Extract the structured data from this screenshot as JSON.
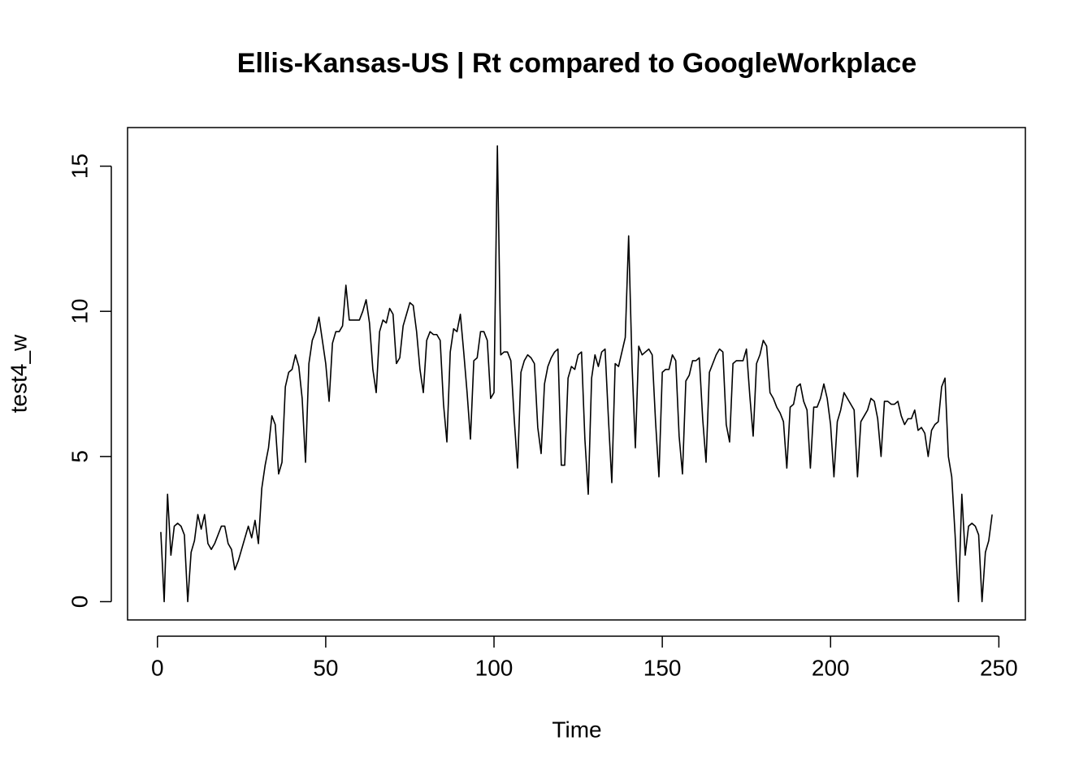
{
  "chart_data": {
    "type": "line",
    "title": "Ellis-Kansas-US | Rt compared to GoogleWorkplace",
    "x_label": "Time",
    "y_label": "test4_w",
    "x": [
      1,
      2,
      3,
      4,
      5,
      6,
      7,
      8,
      9,
      10,
      11,
      12,
      13,
      14,
      15,
      16,
      17,
      18,
      19,
      20,
      21,
      22,
      23,
      24,
      25,
      26,
      27,
      28,
      29,
      30,
      31,
      32,
      33,
      34,
      35,
      36,
      37,
      38,
      39,
      40,
      41,
      42,
      43,
      44,
      45,
      46,
      47,
      48,
      49,
      50,
      51,
      52,
      53,
      54,
      55,
      56,
      57,
      58,
      59,
      60,
      61,
      62,
      63,
      64,
      65,
      66,
      67,
      68,
      69,
      70,
      71,
      72,
      73,
      74,
      75,
      76,
      77,
      78,
      79,
      80,
      81,
      82,
      83,
      84,
      85,
      86,
      87,
      88,
      89,
      90,
      91,
      92,
      93,
      94,
      95,
      96,
      97,
      98,
      99,
      100,
      101,
      102,
      103,
      104,
      105,
      106,
      107,
      108,
      109,
      110,
      111,
      112,
      113,
      114,
      115,
      116,
      117,
      118,
      119,
      120,
      121,
      122,
      123,
      124,
      125,
      126,
      127,
      128,
      129,
      130,
      131,
      132,
      133,
      134,
      135,
      136,
      137,
      138,
      139,
      140,
      141,
      142,
      143,
      144,
      145,
      146,
      147,
      148,
      149,
      150,
      151,
      152,
      153,
      154,
      155,
      156,
      157,
      158,
      159,
      160,
      161,
      162,
      163,
      164,
      165,
      166,
      167,
      168,
      169,
      170,
      171,
      172,
      173,
      174,
      175,
      176,
      177,
      178,
      179,
      180,
      181,
      182,
      183,
      184,
      185,
      186,
      187,
      188,
      189,
      190,
      191,
      192,
      193,
      194,
      195,
      196,
      197,
      198,
      199,
      200,
      201,
      202,
      203,
      204,
      205,
      206,
      207,
      208,
      209,
      210,
      211,
      212,
      213,
      214,
      215,
      216,
      217,
      218,
      219,
      220,
      221,
      222,
      223,
      224,
      225,
      226,
      227,
      228,
      229,
      230,
      231,
      232,
      233,
      234,
      235,
      236,
      237,
      238,
      239,
      240,
      241,
      242,
      243,
      244,
      245,
      246,
      247,
      248
    ],
    "series": [
      {
        "name": "test4_w",
        "color": "#000000",
        "values": [
          2.4,
          0,
          3.7,
          1.6,
          2.6,
          2.7,
          2.6,
          2.3,
          0,
          1.7,
          2.1,
          3.0,
          2.5,
          3.0,
          2.0,
          1.8,
          2.0,
          2.3,
          2.6,
          2.6,
          2.0,
          1.8,
          1.1,
          1.4,
          1.8,
          2.2,
          2.6,
          2.2,
          2.8,
          2.0,
          3.9,
          4.7,
          5.3,
          6.4,
          6.1,
          4.4,
          4.8,
          7.4,
          7.9,
          8.0,
          8.5,
          8.1,
          7.0,
          4.8,
          8.2,
          9.0,
          9.3,
          9.8,
          9.0,
          8.2,
          6.9,
          8.9,
          9.3,
          9.3,
          9.5,
          10.9,
          9.7,
          9.7,
          9.7,
          9.7,
          10.0,
          10.4,
          9.6,
          8.0,
          7.2,
          9.3,
          9.7,
          9.6,
          10.1,
          9.9,
          8.2,
          8.4,
          9.5,
          9.9,
          10.3,
          10.2,
          9.3,
          8.0,
          7.2,
          9.0,
          9.3,
          9.2,
          9.2,
          9.0,
          6.8,
          5.5,
          8.6,
          9.4,
          9.3,
          9.9,
          8.6,
          7.2,
          5.6,
          8.3,
          8.4,
          9.3,
          9.3,
          9.0,
          7.0,
          7.2,
          15.7,
          8.5,
          8.6,
          8.6,
          8.3,
          6.3,
          4.6,
          7.9,
          8.3,
          8.5,
          8.4,
          8.2,
          6.0,
          5.1,
          7.5,
          8.1,
          8.4,
          8.6,
          8.7,
          4.7,
          4.7,
          7.7,
          8.1,
          8.0,
          8.5,
          8.6,
          5.6,
          3.7,
          7.7,
          8.5,
          8.1,
          8.6,
          8.7,
          6.3,
          4.1,
          8.2,
          8.1,
          8.6,
          9.1,
          12.6,
          8.2,
          5.3,
          8.8,
          8.5,
          8.6,
          8.7,
          8.5,
          6.2,
          4.3,
          7.9,
          8.0,
          8.0,
          8.5,
          8.3,
          5.7,
          4.4,
          7.6,
          7.8,
          8.3,
          8.3,
          8.4,
          6.3,
          4.8,
          7.9,
          8.2,
          8.5,
          8.7,
          8.6,
          6.1,
          5.5,
          8.2,
          8.3,
          8.3,
          8.3,
          8.7,
          7.1,
          5.7,
          8.2,
          8.5,
          9.0,
          8.8,
          7.2,
          7.0,
          6.7,
          6.5,
          6.2,
          4.6,
          6.7,
          6.8,
          7.4,
          7.5,
          6.9,
          6.6,
          4.6,
          6.7,
          6.7,
          7.0,
          7.5,
          7.0,
          6.1,
          4.3,
          6.2,
          6.6,
          7.2,
          7.0,
          6.8,
          6.6,
          4.3,
          6.2,
          6.4,
          6.6,
          7.0,
          6.9,
          6.3,
          5.0,
          6.9,
          6.9,
          6.8,
          6.8,
          6.9,
          6.4,
          6.1,
          6.3,
          6.3,
          6.6,
          5.9,
          6.0,
          5.8,
          5.0,
          5.9,
          6.1,
          6.2,
          7.4,
          7.7,
          5.0,
          4.3,
          2.3,
          0,
          3.7,
          1.6,
          2.6,
          2.7,
          2.6,
          2.3,
          0,
          1.7,
          2.1,
          3.0
        ]
      }
    ],
    "xlim": [
      -8.88,
      257.88
    ],
    "ylim": [
      -0.63,
      16.33
    ],
    "xticks": [
      0,
      50,
      100,
      150,
      200,
      250
    ],
    "yticks": [
      0,
      5,
      10,
      15
    ]
  }
}
